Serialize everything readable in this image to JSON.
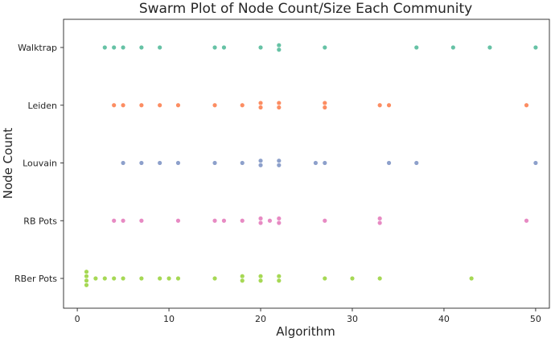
{
  "chart_data": {
    "type": "scatter",
    "subtype": "swarm",
    "title": "Swarm Plot of Node Count/Size Each Community",
    "xlabel": "Algorithm",
    "ylabel": "Node Count",
    "xlim": [
      -1.5,
      51.5
    ],
    "xticks": [
      0,
      10,
      20,
      30,
      40,
      50
    ],
    "xtick_labels": [
      "0",
      "10",
      "20",
      "30",
      "40",
      "50"
    ],
    "categories": [
      "Walktrap",
      "Leiden",
      "Louvain",
      "RB Pots",
      "RBer Pots"
    ],
    "grid": false,
    "legend": "none",
    "series": [
      {
        "category": "Walktrap",
        "color": "#66c2a5",
        "values": [
          3,
          4,
          5,
          7,
          9,
          15,
          16,
          20,
          22,
          22,
          27,
          37,
          41,
          45,
          50
        ]
      },
      {
        "category": "Leiden",
        "color": "#fc8d62",
        "values": [
          4,
          5,
          7,
          9,
          11,
          15,
          18,
          20,
          20,
          22,
          22,
          27,
          27,
          33,
          34,
          49
        ]
      },
      {
        "category": "Louvain",
        "color": "#8da0cb",
        "values": [
          5,
          7,
          9,
          11,
          15,
          18,
          20,
          20,
          22,
          22,
          26,
          27,
          34,
          37,
          50
        ]
      },
      {
        "category": "RB Pots",
        "color": "#e78ac3",
        "values": [
          4,
          5,
          7,
          11,
          15,
          16,
          18,
          20,
          20,
          21,
          22,
          22,
          27,
          33,
          33,
          49
        ]
      },
      {
        "category": "RBer Pots",
        "color": "#a6d854",
        "values": [
          1,
          1,
          1,
          1,
          2,
          3,
          4,
          5,
          7,
          9,
          10,
          11,
          15,
          18,
          18,
          20,
          20,
          22,
          22,
          27,
          30,
          33,
          43
        ]
      }
    ]
  }
}
